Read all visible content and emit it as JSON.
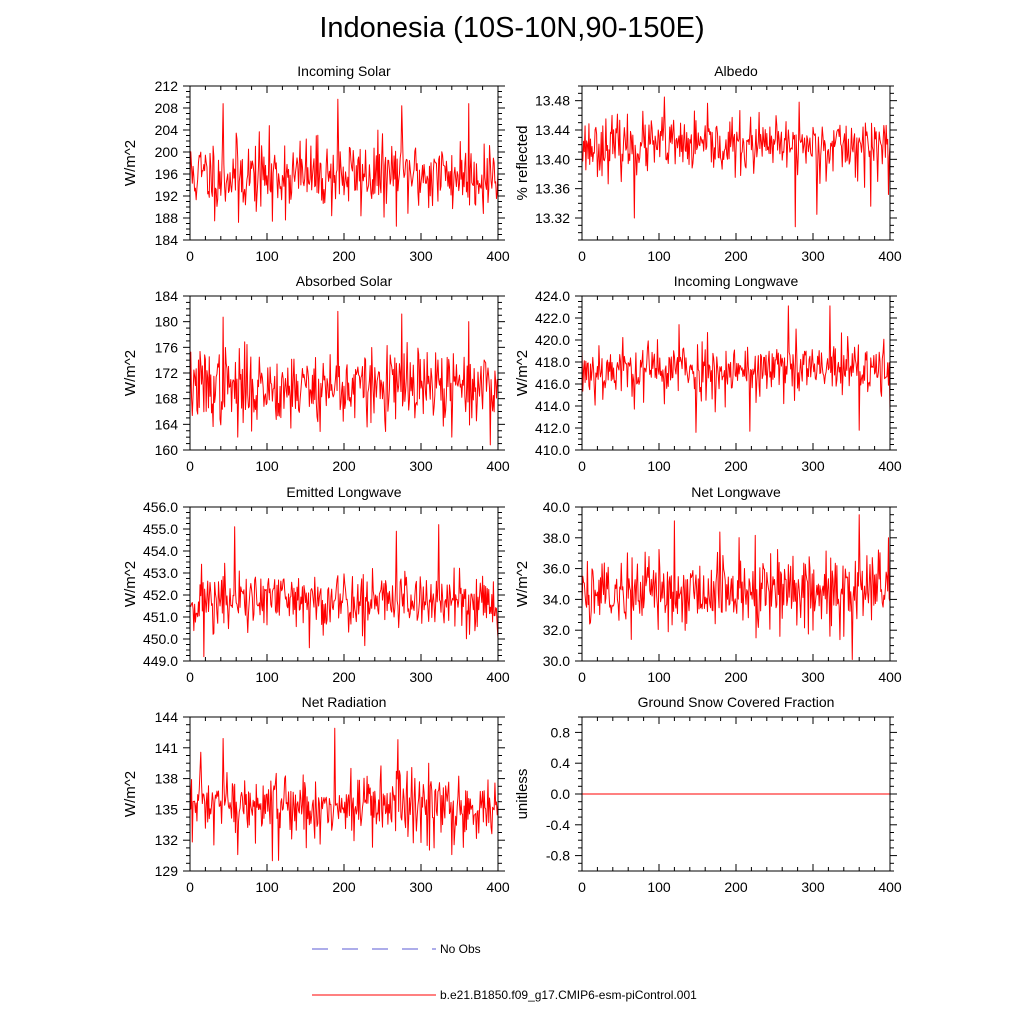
{
  "title": "Indonesia (10S-10N,90-150E)",
  "series_color": "#ff0000",
  "obs_color": "#5b5bd6",
  "legend": {
    "obs_label": "No Obs",
    "model_label": "b.e21.B1850.f09_g17.CMIP6-esm-piControl.001"
  },
  "chart_data": [
    {
      "type": "line",
      "title": "Incoming Solar",
      "ylabel": "W/m^2",
      "xlim": [
        0,
        400
      ],
      "xticks": [
        0,
        100,
        200,
        300,
        400
      ],
      "ylim": [
        184,
        212
      ],
      "yticks": [
        "184",
        "188",
        "192",
        "196",
        "200",
        "204",
        "208",
        "212"
      ],
      "mean": 195.8,
      "noise_sd": 3.3,
      "n": 401,
      "seed": 11,
      "spikes": [
        [
          43,
          208.8
        ],
        [
          63,
          187.2
        ],
        [
          107,
          187.4
        ],
        [
          192,
          209.6
        ],
        [
          275,
          208.4
        ],
        [
          362,
          208.8
        ],
        [
          399,
          192.6
        ]
      ]
    },
    {
      "type": "line",
      "title": "Albedo",
      "ylabel": "% reflected",
      "xlim": [
        0,
        400
      ],
      "xticks": [
        0,
        100,
        200,
        300,
        400
      ],
      "ylim": [
        13.29,
        13.5
      ],
      "yticks": [
        "13.32",
        "13.36",
        "13.40",
        "13.44",
        "13.48"
      ],
      "mean": 13.418,
      "noise_sd": 0.019,
      "n": 401,
      "seed": 23,
      "spikes": [
        [
          107,
          13.485
        ],
        [
          68,
          13.32
        ],
        [
          277,
          13.308
        ],
        [
          282,
          13.478
        ],
        [
          305,
          13.325
        ],
        [
          375,
          13.336
        ],
        [
          398,
          13.352
        ]
      ]
    },
    {
      "type": "line",
      "title": "Absorbed Solar",
      "ylabel": "W/m^2",
      "xlim": [
        0,
        400
      ],
      "xticks": [
        0,
        100,
        200,
        300,
        400
      ],
      "ylim": [
        160,
        184
      ],
      "yticks": [
        "160",
        "164",
        "168",
        "172",
        "176",
        "180",
        "184"
      ],
      "mean": 169.8,
      "noise_sd": 2.9,
      "n": 401,
      "seed": 37,
      "spikes": [
        [
          43,
          180.7
        ],
        [
          62,
          162.0
        ],
        [
          192,
          181.6
        ],
        [
          275,
          181.2
        ],
        [
          362,
          180.0
        ],
        [
          340,
          162.0
        ]
      ]
    },
    {
      "type": "line",
      "title": "Incoming Longwave",
      "ylabel": "W/m^2",
      "xlim": [
        0,
        400
      ],
      "xticks": [
        0,
        100,
        200,
        300,
        400
      ],
      "ylim": [
        410,
        424
      ],
      "yticks": [
        "410.0",
        "412.0",
        "414.0",
        "416.0",
        "418.0",
        "420.0",
        "422.0",
        "424.0"
      ],
      "mean": 417.3,
      "noise_sd": 1.35,
      "n": 401,
      "seed": 53,
      "spikes": [
        [
          268,
          423.1
        ],
        [
          322,
          423.1
        ],
        [
          126,
          421.4
        ],
        [
          360,
          411.8
        ],
        [
          148,
          411.6
        ],
        [
          218,
          411.7
        ],
        [
          400,
          413.5
        ]
      ]
    },
    {
      "type": "line",
      "title": "Emitted Longwave",
      "ylabel": "W/m^2",
      "xlim": [
        0,
        400
      ],
      "xticks": [
        0,
        100,
        200,
        300,
        400
      ],
      "ylim": [
        449,
        456
      ],
      "yticks": [
        "449.0",
        "450.0",
        "451.0",
        "452.0",
        "453.0",
        "454.0",
        "455.0",
        "456.0"
      ],
      "mean": 451.75,
      "noise_sd": 0.72,
      "n": 401,
      "seed": 71,
      "spikes": [
        [
          18,
          449.2
        ],
        [
          58,
          455.1
        ],
        [
          323,
          455.2
        ],
        [
          268,
          454.9
        ],
        [
          227,
          449.7
        ],
        [
          155,
          449.6
        ]
      ]
    },
    {
      "type": "line",
      "title": "Net Longwave",
      "ylabel": "W/m^2",
      "xlim": [
        0,
        400
      ],
      "xticks": [
        0,
        100,
        200,
        300,
        400
      ],
      "ylim": [
        30,
        40
      ],
      "yticks": [
        "30.0",
        "32.0",
        "34.0",
        "36.0",
        "38.0",
        "40.0"
      ],
      "mean": 34.6,
      "noise_sd": 1.25,
      "n": 401,
      "seed": 89,
      "spikes": [
        [
          360,
          39.5
        ],
        [
          120,
          39.1
        ],
        [
          398,
          38.0
        ],
        [
          64,
          31.4
        ],
        [
          257,
          31.6
        ],
        [
          340,
          31.6
        ]
      ]
    },
    {
      "type": "line",
      "title": "Net Radiation",
      "ylabel": "W/m^2",
      "xlim": [
        0,
        400
      ],
      "xticks": [
        0,
        100,
        200,
        300,
        400
      ],
      "ylim": [
        129,
        144
      ],
      "yticks": [
        "129",
        "132",
        "135",
        "138",
        "141",
        "144"
      ],
      "mean": 135.2,
      "noise_sd": 1.75,
      "n": 401,
      "seed": 97,
      "spikes": [
        [
          188,
          142.9
        ],
        [
          43,
          141.9
        ],
        [
          107,
          130.0
        ],
        [
          62,
          130.6
        ],
        [
          270,
          141.8
        ],
        [
          340,
          130.6
        ]
      ]
    },
    {
      "type": "line",
      "title": "Ground Snow Covered Fraction",
      "ylabel": "unitless",
      "xlim": [
        0,
        400
      ],
      "xticks": [
        0,
        100,
        200,
        300,
        400
      ],
      "ylim": [
        -1,
        1
      ],
      "yticks": [
        "-0.8",
        "-0.4",
        "0.0",
        "0.4",
        "0.8"
      ],
      "constant": 0.0,
      "n": 401
    }
  ]
}
